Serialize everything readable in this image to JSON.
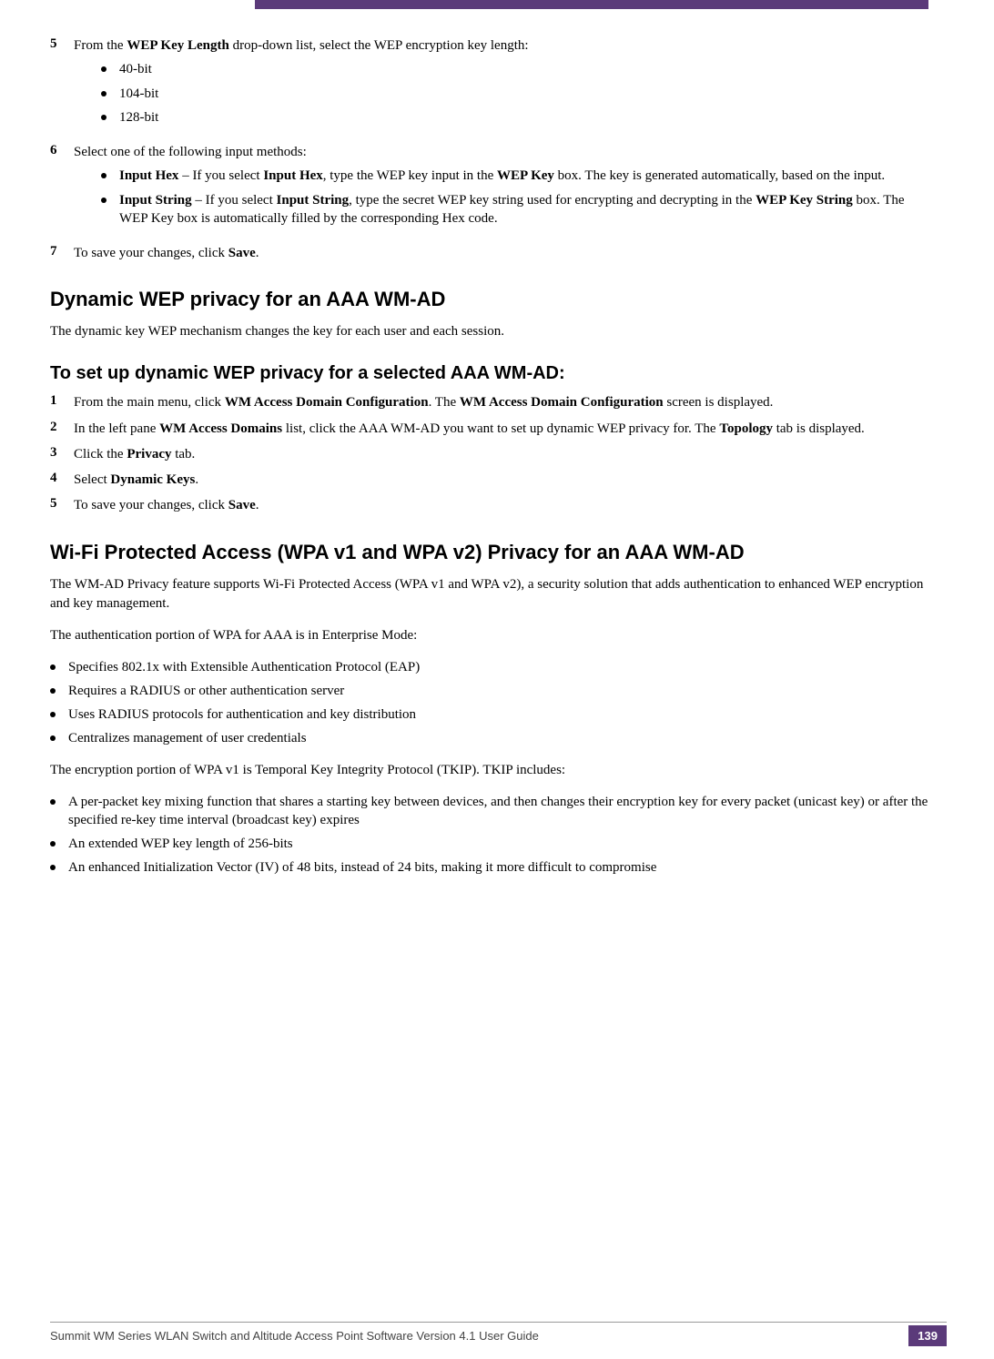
{
  "step5": {
    "num": "5",
    "pre": "From the ",
    "b1": "WEP Key Length",
    "post": " drop-down list, select the WEP encryption key length:",
    "items": [
      "40-bit",
      "104-bit",
      "128-bit"
    ]
  },
  "step6": {
    "num": "6",
    "text": "Select one of the following input methods:",
    "items": [
      {
        "b1": "Input Hex",
        "t1": " – If you select ",
        "b2": "Input Hex",
        "t2": ", type the WEP key input in the ",
        "b3": "WEP Key",
        "t3": " box. The key is generated automatically, based on the input."
      },
      {
        "b1": "Input String",
        "t1": " – If you select ",
        "b2": "Input String",
        "t2": ", type the secret WEP key string used for encrypting and decrypting in the ",
        "b3": "WEP Key String",
        "t3": " box. The WEP Key box is automatically filled by the corresponding Hex code."
      }
    ]
  },
  "step7": {
    "num": "7",
    "pre": "To save your changes, click ",
    "b1": "Save",
    "post": "."
  },
  "h2a": "Dynamic WEP privacy for an AAA WM-AD",
  "p1": "The dynamic key WEP mechanism changes the key for each user and each session.",
  "h3a": "To set up dynamic WEP privacy for a selected AAA WM-AD:",
  "s1": {
    "num": "1",
    "t1": "From the main menu, click ",
    "b1": "WM Access Domain Configuration",
    "t2": ". The ",
    "b2": "WM Access Domain Configuration",
    "t3": " screen is displayed."
  },
  "s2": {
    "num": "2",
    "t1": "In the left pane ",
    "b1": "WM Access Domains",
    "t2": " list, click the AAA WM-AD you want to set up dynamic WEP privacy for. The ",
    "b2": "Topology",
    "t3": " tab is displayed."
  },
  "s3": {
    "num": "3",
    "t1": "Click the ",
    "b1": "Privacy",
    "t2": " tab."
  },
  "s4": {
    "num": "4",
    "t1": "Select ",
    "b1": "Dynamic Keys",
    "t2": "."
  },
  "s5": {
    "num": "5",
    "t1": "To save your changes, click ",
    "b1": "Save",
    "t2": "."
  },
  "h2b": "Wi-Fi Protected Access (WPA v1 and WPA v2) Privacy for an AAA WM-AD",
  "p2": "The WM-AD Privacy feature supports Wi-Fi Protected Access (WPA v1 and WPA v2), a security solution that adds authentication to enhanced WEP encryption and key management.",
  "p3": "The authentication portion of WPA for AAA is in Enterprise Mode:",
  "authList": [
    "Specifies 802.1x with Extensible Authentication Protocol (EAP)",
    "Requires a RADIUS or other authentication server",
    "Uses RADIUS protocols for authentication and key distribution",
    "Centralizes management of user credentials"
  ],
  "p4": "The encryption portion of WPA v1 is Temporal Key Integrity Protocol (TKIP). TKIP includes:",
  "tkipList": [
    "A per-packet key mixing function that shares a starting key between devices, and then changes their encryption key for every packet (unicast key) or after the specified re-key time interval (broadcast key) expires",
    "An extended WEP key length of 256-bits",
    "An enhanced Initialization Vector (IV) of 48 bits, instead of 24 bits, making it more difficult to compromise"
  ],
  "footer": "Summit WM Series WLAN Switch and Altitude Access Point Software Version 4.1 User Guide",
  "pageNum": "139"
}
